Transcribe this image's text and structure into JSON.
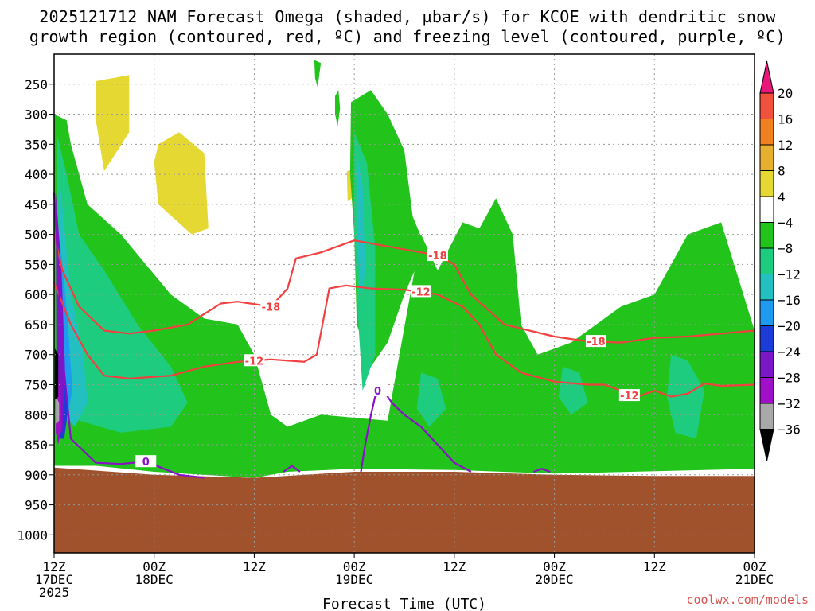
{
  "title_line1": "2025121712 NAM Forecast Omega (shaded, µbar/s) for KCOE with dendritic snow",
  "title_line2": "growth region (contoured, red, ºC) and freezing level (contoured, purple, ºC)",
  "credit": "coolwx.com/models",
  "colors": {
    "ground": "#a0522d",
    "dendritic_contour": "#f04040",
    "freezing_contour": "#8a10c8",
    "grid": "#999999"
  },
  "chart_data": {
    "type": "heatmap",
    "title": "2025121712 NAM Forecast Omega (shaded, µbar/s) for KCOE with dendritic snow growth region (contoured, red, ºC) and freezing level (contoured, purple, ºC)",
    "xlabel": "Forecast Time (UTC)",
    "ylabel": "",
    "x_hours_range": [
      0,
      84
    ],
    "y_pressure_range_hPa": [
      1030,
      200
    ],
    "y_ticks": [
      250,
      300,
      350,
      400,
      450,
      500,
      550,
      600,
      650,
      700,
      750,
      800,
      850,
      900,
      950,
      1000
    ],
    "x_ticks": [
      {
        "hour": 0,
        "lines": [
          "12Z",
          "17DEC",
          "2025"
        ]
      },
      {
        "hour": 12,
        "lines": [
          "00Z",
          "18DEC"
        ]
      },
      {
        "hour": 24,
        "lines": [
          "12Z"
        ]
      },
      {
        "hour": 36,
        "lines": [
          "00Z",
          "19DEC"
        ]
      },
      {
        "hour": 48,
        "lines": [
          "12Z"
        ]
      },
      {
        "hour": 60,
        "lines": [
          "00Z",
          "20DEC"
        ]
      },
      {
        "hour": 72,
        "lines": [
          "12Z"
        ]
      },
      {
        "hour": 84,
        "lines": [
          "00Z",
          "21DEC"
        ]
      }
    ],
    "colorbar": {
      "labels": [
        "20",
        "16",
        "12",
        "8",
        "4",
        "−4",
        "−8",
        "−12",
        "−16",
        "−20",
        "−24",
        "−28",
        "−32",
        "−36"
      ],
      "bins": [
        {
          "lo": 20,
          "hi": 24,
          "color": "#e8187a"
        },
        {
          "lo": 16,
          "hi": 20,
          "color": "#f0503c"
        },
        {
          "lo": 12,
          "hi": 16,
          "color": "#f08020"
        },
        {
          "lo": 8,
          "hi": 12,
          "color": "#e8b030"
        },
        {
          "lo": 4,
          "hi": 8,
          "color": "#e6d832"
        },
        {
          "lo": -4,
          "hi": 4,
          "color": "#ffffff"
        },
        {
          "lo": -8,
          "hi": -4,
          "color": "#22c41c"
        },
        {
          "lo": -12,
          "hi": -8,
          "color": "#1ecc80"
        },
        {
          "lo": -16,
          "hi": -12,
          "color": "#22c0c0"
        },
        {
          "lo": -20,
          "hi": -16,
          "color": "#1e9af0"
        },
        {
          "lo": -24,
          "hi": -20,
          "color": "#1c3cd8"
        },
        {
          "lo": -28,
          "hi": -24,
          "color": "#7a18c8"
        },
        {
          "lo": -32,
          "hi": -28,
          "color": "#a010c8"
        },
        {
          "lo": -36,
          "hi": -32,
          "color": "#a8a8a8"
        },
        {
          "lo": -40,
          "hi": -36,
          "color": "#000000"
        }
      ]
    },
    "ground_surface_hPa": [
      [
        0,
        888
      ],
      [
        12,
        900
      ],
      [
        24,
        905
      ],
      [
        36,
        895
      ],
      [
        48,
        895
      ],
      [
        60,
        900
      ],
      [
        72,
        902
      ],
      [
        84,
        902
      ]
    ],
    "omega_regions": [
      {
        "bin": 4,
        "polygon": [
          [
            5,
            245
          ],
          [
            9,
            235
          ],
          [
            9,
            330
          ],
          [
            6,
            395
          ],
          [
            5,
            310
          ]
        ]
      },
      {
        "bin": 4,
        "polygon": [
          [
            12.5,
            350
          ],
          [
            15,
            330
          ],
          [
            18,
            365
          ],
          [
            18.5,
            490
          ],
          [
            16.5,
            500
          ],
          [
            12.5,
            450
          ],
          [
            12,
            380
          ]
        ]
      },
      {
        "bin": 4,
        "polygon": [
          [
            35.1,
            395
          ],
          [
            35.6,
            393
          ],
          [
            35.7,
            440
          ],
          [
            35.2,
            445
          ]
        ]
      },
      {
        "bin": 6,
        "polygon": [
          [
            0,
            300
          ],
          [
            1.5,
            310
          ],
          [
            2,
            350
          ],
          [
            4,
            450
          ],
          [
            8,
            500
          ],
          [
            14,
            600
          ],
          [
            18,
            640
          ],
          [
            22,
            650
          ],
          [
            24,
            700
          ],
          [
            26,
            800
          ],
          [
            28,
            820
          ],
          [
            32,
            800
          ],
          [
            40,
            810
          ],
          [
            44,
            500
          ],
          [
            46,
            560
          ],
          [
            49,
            480
          ],
          [
            51,
            490
          ],
          [
            53,
            440
          ],
          [
            55,
            500
          ],
          [
            56,
            650
          ],
          [
            58,
            700
          ],
          [
            62,
            680
          ],
          [
            68,
            620
          ],
          [
            72,
            600
          ],
          [
            76,
            500
          ],
          [
            80,
            480
          ],
          [
            84,
            660
          ],
          [
            84,
            890
          ],
          [
            60,
            898
          ],
          [
            48,
            892
          ],
          [
            36,
            890
          ],
          [
            28,
            895
          ],
          [
            24,
            905
          ],
          [
            12,
            895
          ],
          [
            5,
            885
          ],
          [
            0,
            885
          ]
        ]
      },
      {
        "bin": 6,
        "polygon": [
          [
            33.7,
            270
          ],
          [
            34.1,
            260
          ],
          [
            34.3,
            290
          ],
          [
            34.0,
            320
          ],
          [
            33.7,
            300
          ]
        ]
      },
      {
        "bin": 6,
        "polygon": [
          [
            31.2,
            210
          ],
          [
            32.0,
            215
          ],
          [
            31.6,
            255
          ],
          [
            31.3,
            240
          ]
        ]
      },
      {
        "bin": 6,
        "polygon": [
          [
            35.6,
            280
          ],
          [
            38.0,
            260
          ],
          [
            40,
            300
          ],
          [
            42,
            360
          ],
          [
            43,
            470
          ],
          [
            44.5,
            520
          ],
          [
            42,
            600
          ],
          [
            40,
            680
          ],
          [
            38,
            720
          ],
          [
            36.3,
            650
          ],
          [
            36,
            500
          ],
          [
            35.5,
            400
          ]
        ]
      },
      {
        "bin": 7,
        "polygon": [
          [
            0.3,
            330
          ],
          [
            1.5,
            400
          ],
          [
            3,
            500
          ],
          [
            6,
            560
          ],
          [
            10,
            650
          ],
          [
            14,
            720
          ],
          [
            16,
            780
          ],
          [
            14,
            820
          ],
          [
            8,
            830
          ],
          [
            3,
            810
          ],
          [
            1,
            760
          ],
          [
            0.3,
            620
          ]
        ]
      },
      {
        "bin": 7,
        "polygon": [
          [
            36,
            330
          ],
          [
            37.5,
            380
          ],
          [
            38.5,
            520
          ],
          [
            38.5,
            700
          ],
          [
            37,
            760
          ],
          [
            36.5,
            650
          ],
          [
            36,
            500
          ]
        ]
      },
      {
        "bin": 7,
        "polygon": [
          [
            44,
            730
          ],
          [
            46,
            740
          ],
          [
            47,
            790
          ],
          [
            45,
            820
          ],
          [
            43.5,
            790
          ]
        ]
      },
      {
        "bin": 7,
        "polygon": [
          [
            61,
            720
          ],
          [
            63,
            730
          ],
          [
            64,
            780
          ],
          [
            62,
            800
          ],
          [
            60.5,
            770
          ]
        ]
      },
      {
        "bin": 7,
        "polygon": [
          [
            74,
            700
          ],
          [
            76,
            710
          ],
          [
            78,
            760
          ],
          [
            77,
            840
          ],
          [
            74.5,
            830
          ],
          [
            73.5,
            770
          ]
        ]
      },
      {
        "bin": 8,
        "polygon": [
          [
            0.6,
            400
          ],
          [
            2,
            600
          ],
          [
            3.5,
            700
          ],
          [
            4,
            780
          ],
          [
            2.5,
            820
          ],
          [
            1,
            800
          ],
          [
            0.6,
            600
          ]
        ]
      },
      {
        "bin": 8,
        "polygon": [
          [
            36.3,
            360
          ],
          [
            37,
            420
          ],
          [
            37.3,
            560
          ],
          [
            36.8,
            610
          ],
          [
            36.3,
            500
          ]
        ]
      },
      {
        "bin": 9,
        "polygon": [
          [
            0.8,
            520
          ],
          [
            1.6,
            640
          ],
          [
            2.2,
            760
          ],
          [
            1.6,
            800
          ],
          [
            0.8,
            740
          ]
        ]
      },
      {
        "bin": 10,
        "polygon": [
          [
            0.5,
            620
          ],
          [
            1.2,
            700
          ],
          [
            1.6,
            800
          ],
          [
            1.2,
            840
          ],
          [
            0.5,
            840
          ]
        ]
      },
      {
        "bin": 11,
        "polygon": [
          [
            0.2,
            430
          ],
          [
            0.9,
            560
          ],
          [
            1.3,
            720
          ],
          [
            1.0,
            830
          ],
          [
            0.3,
            830
          ]
        ]
      },
      {
        "bin": 12,
        "polygon": [
          [
            0.2,
            720
          ],
          [
            0.8,
            760
          ],
          [
            0.9,
            820
          ],
          [
            0.5,
            850
          ],
          [
            0.2,
            830
          ]
        ]
      },
      {
        "bin": 13,
        "polygon": [
          [
            0.2,
            770
          ],
          [
            0.6,
            780
          ],
          [
            0.6,
            810
          ],
          [
            0.2,
            815
          ]
        ]
      },
      {
        "bin": 14,
        "polygon": [
          [
            0.1,
            690
          ],
          [
            0.5,
            700
          ],
          [
            0.5,
            770
          ],
          [
            0.1,
            775
          ]
        ]
      }
    ],
    "contours": [
      {
        "label": "-18",
        "kind": "dendritic",
        "points": [
          [
            0,
            500
          ],
          [
            1,
            560
          ],
          [
            3,
            620
          ],
          [
            6,
            660
          ],
          [
            9,
            665
          ],
          [
            12,
            660
          ],
          [
            16,
            650
          ],
          [
            20,
            615
          ],
          [
            22,
            612
          ],
          [
            26,
            620
          ],
          [
            28,
            590
          ],
          [
            29,
            540
          ],
          [
            32,
            530
          ],
          [
            36,
            510
          ],
          [
            40,
            520
          ],
          [
            44,
            530
          ],
          [
            46,
            535
          ],
          [
            48,
            550
          ],
          [
            50,
            600
          ],
          [
            54,
            650
          ],
          [
            60,
            670
          ],
          [
            64,
            678
          ],
          [
            68,
            680
          ],
          [
            72,
            672
          ],
          [
            76,
            670
          ],
          [
            80,
            665
          ],
          [
            84,
            660
          ]
        ],
        "label_at": [
          [
            26,
            620
          ],
          [
            46,
            535
          ],
          [
            65,
            678
          ]
        ]
      },
      {
        "label": "-12",
        "kind": "dendritic",
        "points": [
          [
            0,
            580
          ],
          [
            2,
            650
          ],
          [
            4,
            700
          ],
          [
            6,
            735
          ],
          [
            9,
            740
          ],
          [
            14,
            735
          ],
          [
            18,
            720
          ],
          [
            22,
            712
          ],
          [
            26,
            708
          ],
          [
            30,
            712
          ],
          [
            31.5,
            700
          ],
          [
            33,
            590
          ],
          [
            35,
            585
          ],
          [
            38,
            590
          ],
          [
            42,
            592
          ],
          [
            46,
            600
          ],
          [
            49,
            620
          ],
          [
            51,
            650
          ],
          [
            53,
            700
          ],
          [
            56,
            730
          ],
          [
            60,
            745
          ],
          [
            64,
            750
          ],
          [
            66,
            750
          ],
          [
            68,
            760
          ],
          [
            70,
            770
          ],
          [
            72,
            760
          ],
          [
            74,
            770
          ],
          [
            76,
            765
          ],
          [
            78,
            748
          ],
          [
            80,
            752
          ],
          [
            84,
            750
          ]
        ],
        "label_at": [
          [
            24,
            710
          ],
          [
            44,
            595
          ],
          [
            69,
            768
          ]
        ]
      },
      {
        "label": "0",
        "kind": "freezing",
        "points": [
          [
            0,
            430
          ],
          [
            1,
            700
          ],
          [
            2,
            840
          ],
          [
            5,
            880
          ],
          [
            8,
            882
          ],
          [
            11,
            878
          ],
          [
            15,
            900
          ],
          [
            18,
            905
          ]
        ],
        "label_at": [
          [
            11,
            878
          ]
        ]
      },
      {
        "label": "0",
        "kind": "freezing",
        "points": [
          [
            36.8,
            895
          ],
          [
            37.3,
            850
          ],
          [
            38,
            800
          ],
          [
            38.5,
            770
          ],
          [
            39.5,
            760
          ],
          [
            40.5,
            780
          ],
          [
            42,
            800
          ],
          [
            44,
            820
          ],
          [
            46,
            850
          ],
          [
            48,
            880
          ],
          [
            50,
            895
          ]
        ],
        "label_at": [
          [
            38.8,
            760
          ]
        ]
      },
      {
        "label": "",
        "kind": "freezing",
        "points": [
          [
            27.5,
            895
          ],
          [
            28.5,
            885
          ],
          [
            29.5,
            895
          ]
        ],
        "label_at": []
      },
      {
        "label": "",
        "kind": "freezing",
        "points": [
          [
            57.5,
            895
          ],
          [
            58.5,
            890
          ],
          [
            59.5,
            895
          ]
        ],
        "label_at": []
      }
    ]
  }
}
